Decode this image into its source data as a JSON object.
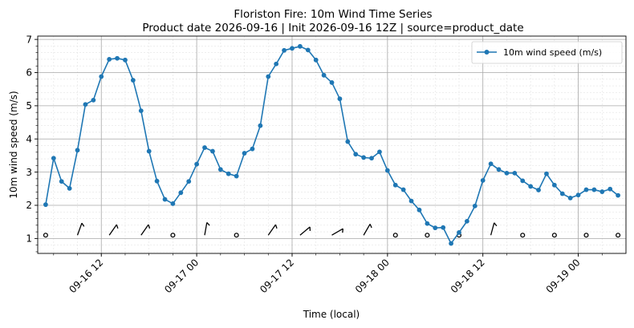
{
  "chart_data": {
    "type": "line",
    "title": "Floriston Fire: 10m Wind Time Series",
    "subtitle": "Product date 2026-09-16 | Init 2026-09-16 12Z | source=product_date",
    "xlabel": "Time (local)",
    "ylabel": "10m wind speed (m/s)",
    "x_start": "2026-09-16 05:00",
    "x_step_hours": 1,
    "xlim": [
      "2026-09-16 04:00",
      "2026-09-19 06:00"
    ],
    "ylim": [
      0.55,
      7.1
    ],
    "x_ticks": [
      {
        "label": "09-16 12",
        "hour": 12
      },
      {
        "label": "09-17 00",
        "hour": 24
      },
      {
        "label": "09-17 12",
        "hour": 36
      },
      {
        "label": "09-18 00",
        "hour": 48
      },
      {
        "label": "09-18 12",
        "hour": 60
      },
      {
        "label": "09-19 00",
        "hour": 72
      }
    ],
    "y_ticks": [
      1,
      2,
      3,
      4,
      5,
      6,
      7
    ],
    "grid": true,
    "legend": "top-right",
    "series": [
      {
        "name": "10m wind speed (m/s)",
        "color": "#1f77b4",
        "values": [
          2.02,
          3.42,
          2.72,
          2.51,
          3.66,
          5.04,
          5.17,
          5.88,
          6.4,
          6.43,
          6.38,
          5.77,
          4.85,
          3.63,
          2.73,
          2.18,
          2.05,
          2.38,
          2.72,
          3.24,
          3.74,
          3.63,
          3.08,
          2.95,
          2.88,
          3.57,
          3.7,
          4.4,
          5.88,
          6.26,
          6.67,
          6.73,
          6.79,
          6.68,
          6.38,
          5.92,
          5.7,
          5.21,
          3.92,
          3.54,
          3.44,
          3.42,
          3.61,
          3.05,
          2.61,
          2.47,
          2.13,
          1.86,
          1.45,
          1.32,
          1.33,
          0.85,
          1.18,
          1.52,
          1.98,
          2.75,
          3.25,
          3.08,
          2.97,
          2.97,
          2.74,
          2.57,
          2.46,
          2.95,
          2.61,
          2.35,
          2.22,
          2.31,
          2.47,
          2.47,
          2.41,
          2.49,
          2.3
        ]
      }
    ],
    "wind_barbs": {
      "y": 1.1,
      "hours": [
        0,
        4,
        8,
        12,
        16,
        20,
        24,
        28,
        32,
        36,
        40,
        44,
        48,
        52,
        56,
        60,
        64,
        68,
        72,
        76
      ],
      "kinds": [
        "calm",
        "barb",
        "barb",
        "barb",
        "calm",
        "barb",
        "calm",
        "barb",
        "barb",
        "barb",
        "barb",
        "calm",
        "calm",
        "calm",
        "barb",
        "calm",
        "calm",
        "calm",
        "calm",
        "calm"
      ],
      "angles": [
        0,
        -160,
        -145,
        -145,
        0,
        -170,
        0,
        -145,
        -130,
        -120,
        -150,
        0,
        0,
        0,
        -165,
        0,
        0,
        0,
        0,
        0
      ]
    }
  }
}
